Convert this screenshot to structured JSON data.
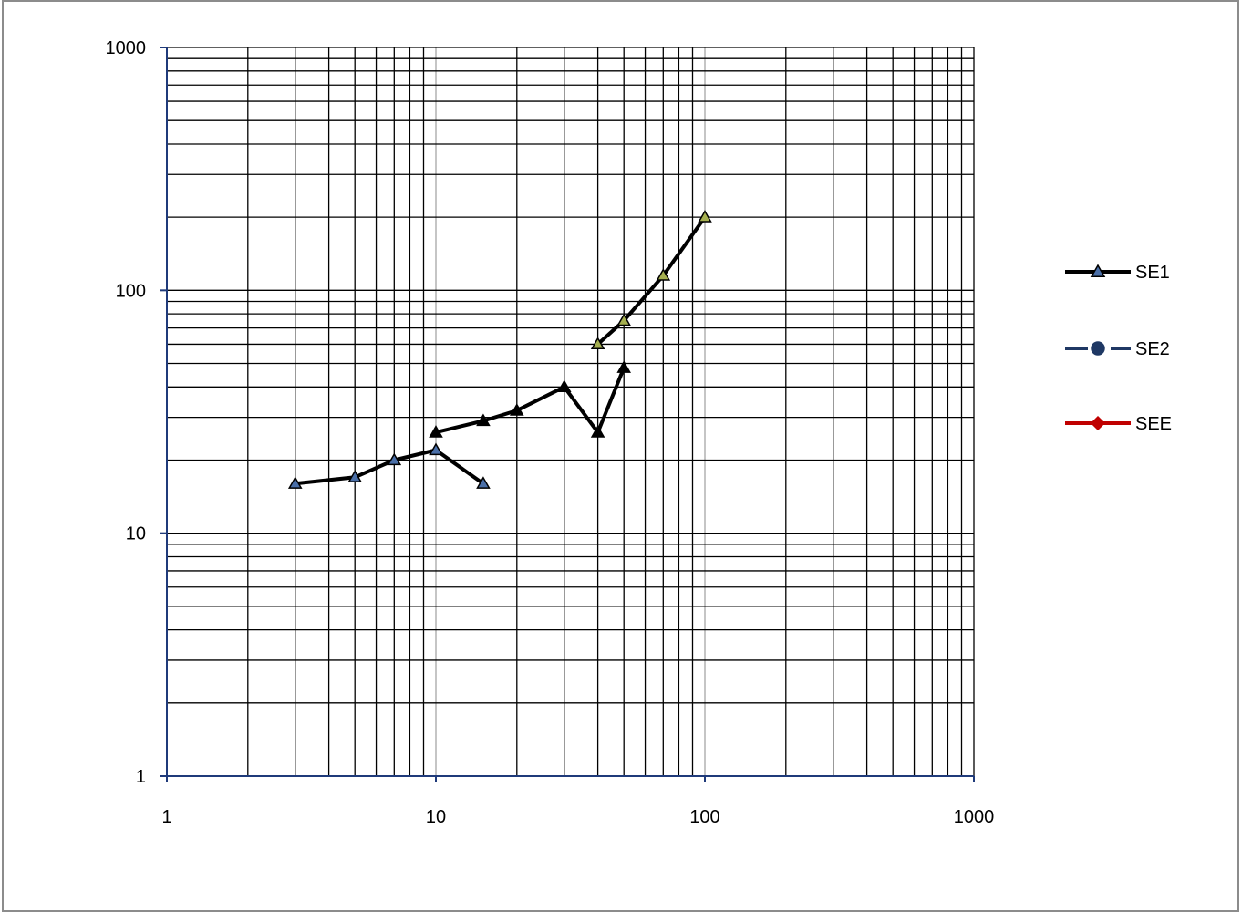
{
  "chart_data": {
    "type": "line",
    "x_scale": "log",
    "y_scale": "log",
    "xlim": [
      1,
      1000
    ],
    "ylim": [
      1,
      1000
    ],
    "x_ticks": [
      "1",
      "10",
      "100",
      "1000"
    ],
    "y_ticks": [
      "1",
      "10",
      "100",
      "1000"
    ],
    "grid": true,
    "legend_position": "right",
    "series": [
      {
        "name": "SE1",
        "color": "#000000",
        "marker": "triangle",
        "marker_color": "#4a6fa8",
        "points": [
          [
            3,
            16
          ],
          [
            5,
            17
          ],
          [
            7,
            20
          ],
          [
            10,
            22
          ],
          [
            15,
            16
          ]
        ]
      },
      {
        "name": "",
        "color": "#000000",
        "marker": "triangle",
        "marker_color": "#000000",
        "points": [
          [
            10,
            26
          ],
          [
            15,
            29
          ],
          [
            20,
            32
          ],
          [
            30,
            40
          ],
          [
            40,
            26
          ],
          [
            50,
            48
          ]
        ]
      },
      {
        "name": "",
        "color": "#000000",
        "marker": "triangle",
        "marker_color": "#a6b050",
        "points": [
          [
            40,
            60
          ],
          [
            50,
            75
          ],
          [
            70,
            115
          ],
          [
            100,
            200
          ]
        ]
      }
    ],
    "legend": [
      {
        "name": "SE1",
        "line_color": "#000000",
        "marker": "triangle",
        "marker_color": "#4a6fa8",
        "dash": false
      },
      {
        "name": "SE2",
        "line_color": "#1f3864",
        "marker": "circle",
        "marker_color": "#1f3864",
        "dash": true
      },
      {
        "name": "SEE",
        "line_color": "#c00000",
        "marker": "diamond",
        "marker_color": "#c00000",
        "dash": false
      }
    ]
  }
}
